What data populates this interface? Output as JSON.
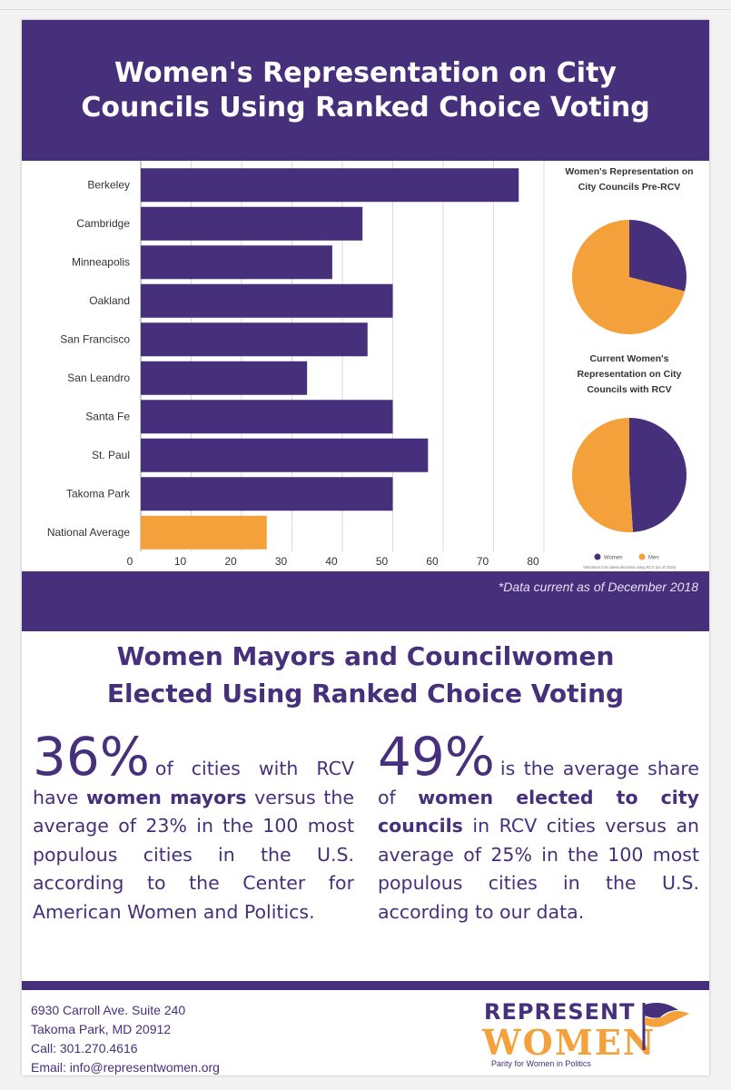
{
  "title": "Women's Representation on City Councils Using Ranked Choice Voting",
  "chart_data": [
    {
      "type": "bar",
      "orientation": "horizontal",
      "categories": [
        "Berkeley",
        "Cambridge",
        "Minneapolis",
        "Oakland",
        "San Francisco",
        "San Leandro",
        "Santa Fe",
        "St. Paul",
        "Takoma Park",
        "National Average"
      ],
      "values": [
        75,
        44,
        38,
        50,
        45,
        33,
        50,
        57,
        50,
        25
      ],
      "highlight_category": "National Average",
      "x_ticks": [
        0,
        10,
        20,
        30,
        40,
        50,
        60,
        70,
        80
      ],
      "xlim": [
        0,
        80
      ],
      "grid": true,
      "colors": {
        "bar": "#46307c",
        "highlight": "#f4a13b",
        "grid": "#d9d9d9"
      }
    },
    {
      "type": "pie",
      "title": "Women's Representation on City Councils Pre-RCV",
      "labels": [
        "Women",
        "Men"
      ],
      "values": [
        29,
        71
      ],
      "colors": [
        "#46307c",
        "#f4a13b"
      ]
    },
    {
      "type": "pie",
      "title": "Current Women's Representation on City Councils with RCV",
      "labels": [
        "Women",
        "Men"
      ],
      "values": [
        49,
        51
      ],
      "colors": [
        "#46307c",
        "#f4a13b"
      ],
      "legend": [
        "Women",
        "Men"
      ],
      "footnote": "*Members from latest elections using RCV (as of 2018)"
    }
  ],
  "note": "*Data current as of December 2018",
  "subtitle_line1": "Women Mayors and Councilwomen",
  "subtitle_line2": "Elected Using Ranked Choice Voting",
  "stat_left": {
    "number": "36%",
    "text1": "of cities with RCV have ",
    "bold": "women mayors",
    "text2": " versus the average of 23% in the 100 most populous cities in the U.S. according to the Center for American Women and Politics."
  },
  "stat_right": {
    "number": "49%",
    "text1": "is the average share of ",
    "bold": "women elected to city councils",
    "text2": " in RCV cities versus an average of 25% in the 100 most populous cities in the U.S. according to our data."
  },
  "address": {
    "line1": "6930 Carroll Ave. Suite 240",
    "line2": "Takoma Park, MD 20912",
    "line3": "Call: 301.270.4616",
    "line4": "Email: info@representwomen.org"
  },
  "logo": {
    "line1": "REPRESENT",
    "line2": "WOMEN",
    "tagline": "Parity for Women in Politics"
  }
}
